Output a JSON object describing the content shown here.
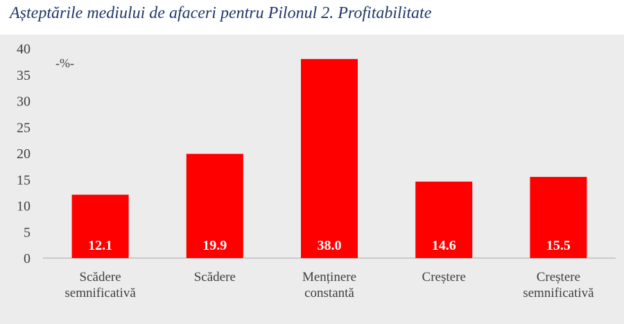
{
  "title": "Așteptările mediului de afaceri pentru Pilonul 2. Profitabilitate",
  "chart_data": {
    "type": "bar",
    "title": "Așteptările mediului de afaceri pentru Pilonul 2. Profitabilitate",
    "unit_label": "-%-",
    "categories": [
      [
        "Scădere",
        "semnificativă"
      ],
      [
        "Scădere"
      ],
      [
        "Menținere",
        "constantă"
      ],
      [
        "Creștere"
      ],
      [
        "Creștere",
        "semnificativă"
      ]
    ],
    "values": [
      12.1,
      19.9,
      38.0,
      14.6,
      15.5
    ],
    "data_labels": [
      "12.1",
      "19.9",
      "38.0",
      "14.6",
      "15.5"
    ],
    "ylim": [
      0,
      40
    ],
    "yticks": [
      0,
      5,
      10,
      15,
      20,
      25,
      30,
      35,
      40
    ],
    "grid": false,
    "bar_color": "#ff0000",
    "background_color": "#ececec",
    "title_color": "#1f3864"
  }
}
